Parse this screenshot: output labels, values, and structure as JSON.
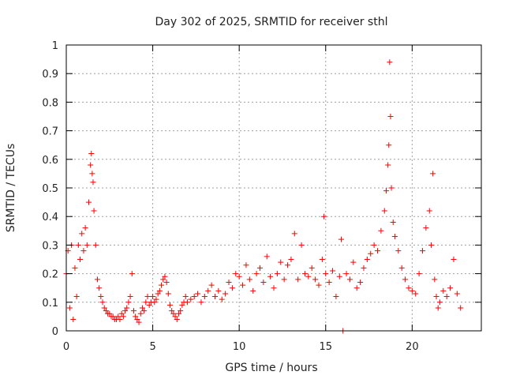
{
  "chart_data": {
    "type": "scatter",
    "title": "Day 302 of 2025, SRMTID for receiver sthl",
    "xlabel": "GPS time / hours",
    "ylabel": "SRMTID / TECUs",
    "xlim": [
      0,
      24
    ],
    "ylim": [
      0,
      1
    ],
    "xticks": [
      0,
      5,
      10,
      15,
      20
    ],
    "yticks": [
      0,
      0.1,
      0.2,
      0.3,
      0.4,
      0.5,
      0.6,
      0.7,
      0.8,
      0.9,
      1
    ],
    "xtick_labels": [
      "0",
      "5",
      "10",
      "15",
      "20"
    ],
    "ytick_labels": [
      "0",
      "0.1",
      "0.2",
      "0.3",
      "0.4",
      "0.5",
      "0.6",
      "0.7",
      "0.8",
      "0.9",
      "1"
    ],
    "grid": true,
    "marker": "+",
    "series": [
      {
        "name": "sthl",
        "color": "#ff0000",
        "x": [
          0.0,
          0.1,
          0.2,
          0.3,
          0.4,
          0.5,
          0.6,
          0.7,
          0.8,
          0.9,
          1.0,
          1.1,
          1.2,
          1.3,
          1.4,
          1.45,
          1.5,
          1.55,
          1.6,
          1.7,
          1.8,
          1.9,
          2.0,
          2.1,
          2.2,
          2.3,
          2.4,
          2.5,
          2.6,
          2.7,
          2.8,
          2.9,
          3.0,
          3.1,
          3.2,
          3.3,
          3.4,
          3.5,
          3.6,
          3.7,
          3.8,
          3.9,
          4.0,
          4.1,
          4.2,
          4.3,
          4.4,
          4.5,
          4.6,
          4.7,
          4.8,
          4.9,
          5.0,
          5.1,
          5.2,
          5.3,
          5.4,
          5.5,
          5.6,
          5.7,
          5.8,
          5.9,
          6.0,
          6.1,
          6.2,
          6.3,
          6.4,
          6.5,
          6.6,
          6.7,
          6.8,
          6.9,
          7.0,
          7.2,
          7.4,
          7.6,
          7.8,
          8.0,
          8.2,
          8.4,
          8.6,
          8.8,
          9.0,
          9.2,
          9.4,
          9.6,
          9.8,
          10.0,
          10.2,
          10.4,
          10.6,
          10.8,
          11.0,
          11.2,
          11.4,
          11.6,
          11.8,
          12.0,
          12.2,
          12.4,
          12.6,
          12.8,
          13.0,
          13.2,
          13.4,
          13.6,
          13.8,
          14.0,
          14.2,
          14.4,
          14.6,
          14.8,
          14.9,
          15.0,
          15.2,
          15.4,
          15.6,
          15.8,
          15.9,
          16.0,
          16.2,
          16.4,
          16.6,
          16.8,
          17.0,
          17.2,
          17.4,
          17.6,
          17.8,
          18.0,
          18.2,
          18.4,
          18.5,
          18.6,
          18.65,
          18.7,
          18.75,
          18.8,
          18.9,
          19.0,
          19.2,
          19.4,
          19.6,
          19.8,
          20.0,
          20.2,
          20.4,
          20.6,
          20.8,
          21.0,
          21.1,
          21.2,
          21.3,
          21.4,
          21.5,
          21.6,
          21.8,
          22.0,
          22.2,
          22.4,
          22.6,
          22.8
        ],
        "y": [
          0.2,
          0.28,
          0.08,
          0.3,
          0.04,
          0.22,
          0.12,
          0.3,
          0.25,
          0.34,
          0.28,
          0.36,
          0.3,
          0.45,
          0.58,
          0.62,
          0.55,
          0.52,
          0.42,
          0.3,
          0.18,
          0.15,
          0.12,
          0.1,
          0.08,
          0.07,
          0.06,
          0.06,
          0.05,
          0.05,
          0.04,
          0.04,
          0.05,
          0.04,
          0.06,
          0.05,
          0.07,
          0.08,
          0.1,
          0.12,
          0.2,
          0.07,
          0.05,
          0.04,
          0.03,
          0.06,
          0.08,
          0.07,
          0.1,
          0.12,
          0.09,
          0.1,
          0.12,
          0.1,
          0.11,
          0.13,
          0.14,
          0.16,
          0.18,
          0.19,
          0.17,
          0.13,
          0.09,
          0.07,
          0.06,
          0.05,
          0.04,
          0.06,
          0.07,
          0.09,
          0.1,
          0.12,
          0.1,
          0.11,
          0.12,
          0.13,
          0.1,
          0.12,
          0.14,
          0.16,
          0.12,
          0.14,
          0.11,
          0.13,
          0.17,
          0.15,
          0.2,
          0.19,
          0.16,
          0.23,
          0.18,
          0.14,
          0.2,
          0.22,
          0.17,
          0.26,
          0.19,
          0.15,
          0.2,
          0.24,
          0.18,
          0.23,
          0.25,
          0.34,
          0.18,
          0.3,
          0.2,
          0.19,
          0.22,
          0.18,
          0.16,
          0.25,
          0.4,
          0.2,
          0.17,
          0.21,
          0.12,
          0.19,
          0.32,
          0.0,
          0.2,
          0.18,
          0.24,
          0.15,
          0.17,
          0.22,
          0.25,
          0.27,
          0.3,
          0.28,
          0.35,
          0.42,
          0.49,
          0.58,
          0.65,
          0.94,
          0.75,
          0.5,
          0.38,
          0.33,
          0.28,
          0.22,
          0.18,
          0.15,
          0.14,
          0.13,
          0.2,
          0.28,
          0.36,
          0.42,
          0.3,
          0.55,
          0.18,
          0.12,
          0.08,
          0.1,
          0.14,
          0.12,
          0.15,
          0.25,
          0.13,
          0.08
        ]
      }
    ]
  }
}
